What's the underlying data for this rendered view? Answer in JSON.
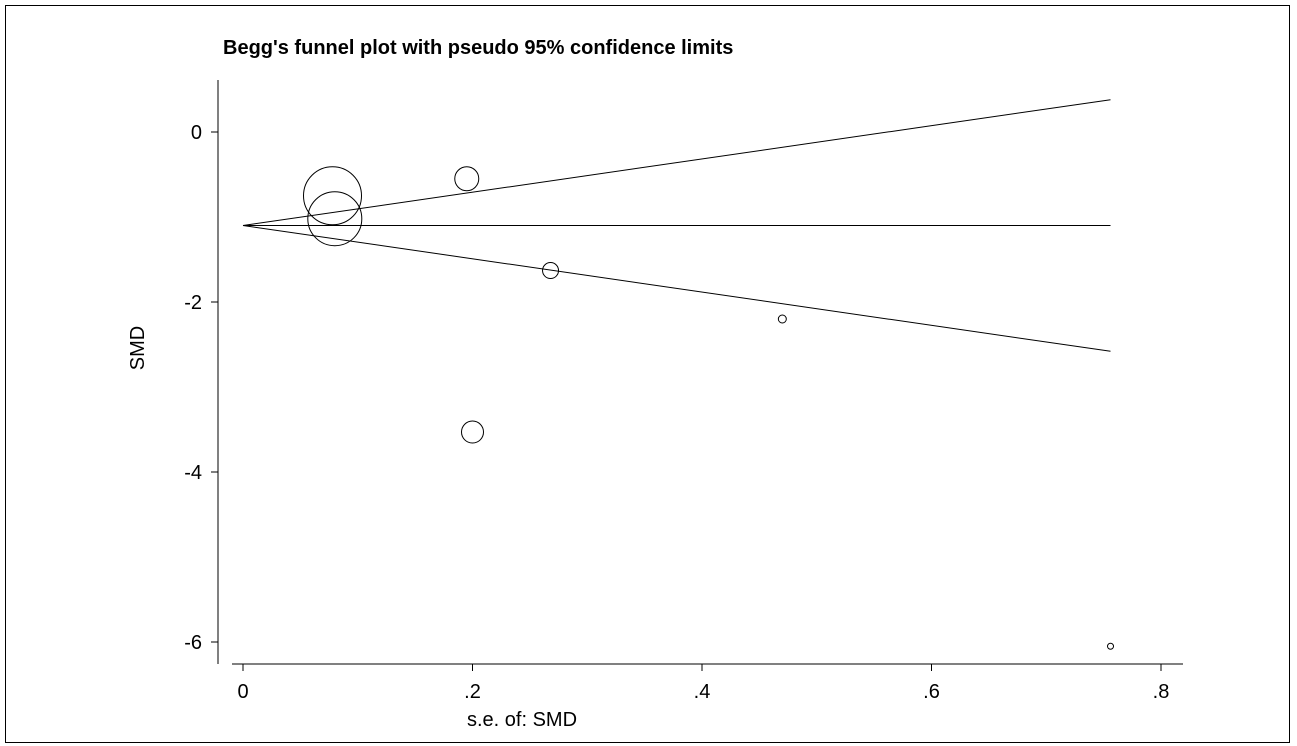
{
  "chart_data": {
    "type": "scatter",
    "title": "Begg's funnel plot with pseudo 95% confidence limits",
    "xlabel": "s.e. of: SMD",
    "ylabel": "SMD",
    "xlim": [
      0,
      0.8
    ],
    "ylim": [
      -6,
      0
    ],
    "x_ticks": [
      {
        "value": 0,
        "label": "0"
      },
      {
        "value": 0.2,
        "label": ".2"
      },
      {
        "value": 0.4,
        "label": ".4"
      },
      {
        "value": 0.6,
        "label": ".6"
      },
      {
        "value": 0.8,
        "label": ".8"
      }
    ],
    "y_ticks": [
      {
        "value": 0,
        "label": "0"
      },
      {
        "value": -2,
        "label": "-2"
      },
      {
        "value": -4,
        "label": "-4"
      },
      {
        "value": -6,
        "label": "-6"
      }
    ],
    "pooled_estimate": -1.1,
    "funnel_x_range": [
      0,
      0.756
    ],
    "funnel_limits": {
      "upper_at_max_se": 0.38,
      "lower_at_max_se": -2.58
    },
    "points": [
      {
        "x": 0.078,
        "y": -0.75,
        "marker_size": 29
      },
      {
        "x": 0.08,
        "y": -1.02,
        "marker_size": 27
      },
      {
        "x": 0.195,
        "y": -0.55,
        "marker_size": 12
      },
      {
        "x": 0.268,
        "y": -1.63,
        "marker_size": 8
      },
      {
        "x": 0.2,
        "y": -3.53,
        "marker_size": 11
      },
      {
        "x": 0.47,
        "y": -2.2,
        "marker_size": 4
      },
      {
        "x": 0.756,
        "y": -6.05,
        "marker_size": 3
      }
    ],
    "grid": false,
    "legend": "none"
  }
}
